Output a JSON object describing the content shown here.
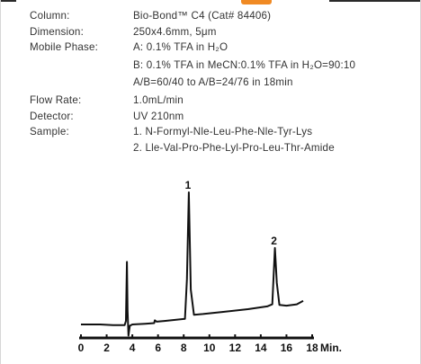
{
  "conditions": {
    "column_label": "Column:",
    "column_value": "Bio-Bond™ C4 (Cat# 84406)",
    "dimension_label": "Dimension:",
    "dimension_value": "250x4.6mm, 5μm",
    "mobile_phase_label": "Mobile Phase:",
    "mobile_phase_a": "A: 0.1% TFA in H₂O",
    "mobile_phase_b": "B: 0.1% TFA in MeCN:0.1% TFA in H₂O=90:10",
    "gradient": "A/B=60/40 to A/B=24/76 in 18min",
    "flow_rate_label": "Flow Rate:",
    "flow_rate_value": "1.0mL/min",
    "detector_label": "Detector:",
    "detector_value": "UV 210nm",
    "sample_label": "Sample:",
    "sample_1": "1. N-Formyl-Nle-Leu-Phe-Nle-Tyr-Lys",
    "sample_2": "2. Lle-Val-Pro-Phe-Lyl-Pro-Leu-Thr-Amide"
  },
  "colors": {
    "accent": "#f08a24",
    "trace": "#111111",
    "text": "#333333"
  },
  "chart_data": {
    "type": "line",
    "title": "",
    "xlabel": "Min.",
    "ylabel": "",
    "xlim": [
      0,
      18
    ],
    "x_ticks": [
      0,
      2,
      4,
      6,
      8,
      10,
      12,
      14,
      16,
      18
    ],
    "x_tick_labels": [
      "0",
      "2",
      "4",
      "6",
      "8",
      "10",
      "12",
      "14",
      "16",
      "18"
    ],
    "y_axis_shown": false,
    "grid": false,
    "ylim": [
      -3,
      40
    ],
    "series": [
      {
        "values": [
          [
            0.0,
            2.0
          ],
          [
            1.5,
            2.0
          ],
          [
            2.5,
            1.8
          ],
          [
            3.4,
            1.8
          ],
          [
            3.5,
            3.0
          ],
          [
            3.58,
            20.0
          ],
          [
            3.63,
            6.0
          ],
          [
            3.7,
            -1.2
          ],
          [
            3.8,
            1.6
          ],
          [
            4.0,
            2.0
          ],
          [
            5.0,
            2.2
          ],
          [
            5.7,
            2.4
          ],
          [
            5.75,
            3.2
          ],
          [
            5.9,
            2.8
          ],
          [
            6.5,
            3.0
          ],
          [
            7.5,
            3.4
          ],
          [
            8.1,
            3.6
          ],
          [
            8.25,
            15.0
          ],
          [
            8.4,
            40.0
          ],
          [
            8.55,
            12.0
          ],
          [
            8.8,
            4.8
          ],
          [
            9.5,
            5.0
          ],
          [
            11.0,
            5.6
          ],
          [
            13.0,
            6.4
          ],
          [
            14.5,
            7.2
          ],
          [
            14.9,
            7.8
          ],
          [
            15.1,
            24.0
          ],
          [
            15.25,
            14.0
          ],
          [
            15.45,
            7.6
          ],
          [
            16.0,
            7.4
          ],
          [
            16.8,
            7.8
          ],
          [
            17.3,
            8.8
          ]
        ]
      }
    ],
    "peaks": [
      {
        "label": "1",
        "x": 8.4,
        "y": 40.0
      },
      {
        "label": "2",
        "x": 15.1,
        "y": 24.0
      }
    ]
  }
}
